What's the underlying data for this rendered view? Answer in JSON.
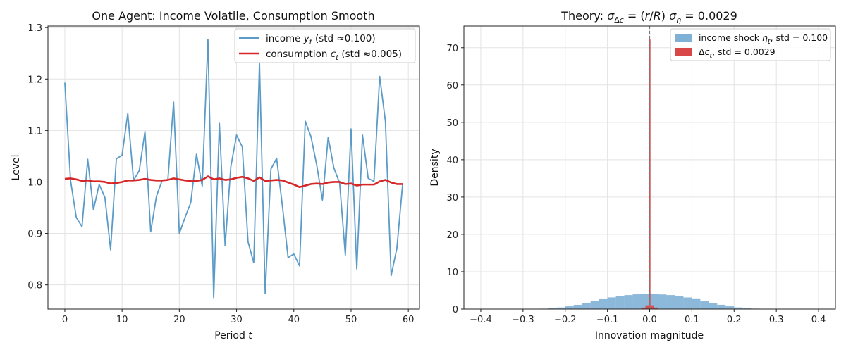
{
  "chart_data": [
    {
      "type": "line",
      "title": "One Agent: Income Volatile, Consumption Smooth",
      "xlabel": "Period t",
      "ylabel": "Level",
      "xlim": [
        -2.95,
        61.95
      ],
      "ylim": [
        0.753,
        1.303
      ],
      "xticks": [
        0,
        10,
        20,
        30,
        40,
        50,
        60
      ],
      "yticks": [
        0.8,
        0.9,
        1.0,
        1.1,
        1.2,
        1.3
      ],
      "ytick_labels": [
        "0.8",
        "0.9",
        "1.0",
        "1.1",
        "1.2",
        "1.3"
      ],
      "grid": true,
      "legend_position": "top-right",
      "reference_line": {
        "y": 1.0,
        "style": "dotted",
        "color": "#777777"
      },
      "x": [
        0,
        1,
        2,
        3,
        4,
        5,
        6,
        7,
        8,
        9,
        10,
        11,
        12,
        13,
        14,
        15,
        16,
        17,
        18,
        19,
        20,
        21,
        22,
        23,
        24,
        25,
        26,
        27,
        28,
        29,
        30,
        31,
        32,
        33,
        34,
        35,
        36,
        37,
        38,
        39,
        40,
        41,
        42,
        43,
        44,
        45,
        46,
        47,
        48,
        49,
        50,
        51,
        52,
        53,
        54,
        55,
        56,
        57,
        58,
        59
      ],
      "series": [
        {
          "name": "income y_t (std ≈ 0.100)",
          "color": "#5b9bc8",
          "values": [
            1.193,
            1.003,
            0.931,
            0.913,
            1.044,
            0.946,
            0.995,
            0.97,
            0.868,
            1.045,
            1.052,
            1.133,
            1.003,
            1.022,
            1.098,
            0.903,
            0.972,
            1.003,
            1.004,
            1.155,
            0.9,
            0.931,
            0.96,
            1.054,
            0.992,
            1.277,
            0.774,
            1.114,
            0.876,
            1.03,
            1.091,
            1.068,
            0.884,
            0.843,
            1.232,
            0.783,
            1.025,
            1.046,
            0.954,
            0.853,
            0.86,
            0.837,
            1.118,
            1.088,
            1.033,
            0.965,
            1.087,
            1.027,
            0.998,
            0.858,
            1.103,
            0.831,
            1.091,
            1.007,
            1.001,
            1.205,
            1.118,
            0.818,
            0.871,
            0.995
          ]
        },
        {
          "name": "consumption c_t (std ≈ 0.005)",
          "color": "#d62728",
          "values": [
            1.006,
            1.007,
            1.005,
            1.002,
            1.003,
            1.001,
            1.001,
            1.0,
            0.997,
            0.998,
            1.0,
            1.003,
            1.003,
            1.004,
            1.006,
            1.004,
            1.003,
            1.003,
            1.004,
            1.007,
            1.005,
            1.003,
            1.002,
            1.002,
            1.004,
            1.011,
            1.005,
            1.007,
            1.004,
            1.005,
            1.008,
            1.01,
            1.007,
            1.002,
            1.009,
            1.002,
            1.003,
            1.004,
            1.003,
            0.999,
            0.995,
            0.99,
            0.993,
            0.996,
            0.997,
            0.996,
            0.999,
            1.0,
            1.0,
            0.996,
            0.997,
            0.993,
            0.995,
            0.995,
            0.995,
            1.001,
            1.004,
            0.999,
            0.996,
            0.996
          ]
        }
      ],
      "legend_labels": {
        "income_prefix": "income ",
        "income_var": "y",
        "income_sub": "t",
        "income_suffix": " (std ≈0.100)",
        "cons_prefix": "consumption ",
        "cons_var": "c",
        "cons_sub": "t",
        "cons_suffix": " (std ≈0.005)"
      }
    },
    {
      "type": "bar",
      "subtype": "histogram",
      "title_prefix": "Theory: ",
      "title_math": "σΔc = (r/R) ση = 0.0029",
      "xlabel": "Innovation magnitude",
      "ylabel": "Density",
      "xlim": [
        -0.44,
        0.44
      ],
      "ylim": [
        0,
        75.8
      ],
      "xticks": [
        -0.4,
        -0.3,
        -0.2,
        -0.1,
        0.0,
        0.1,
        0.2,
        0.3,
        0.4
      ],
      "xtick_labels": [
        "−0.4",
        "−0.3",
        "−0.2",
        "−0.1",
        "0.0",
        "0.1",
        "0.2",
        "0.3",
        "0.4"
      ],
      "yticks": [
        0,
        10,
        20,
        30,
        40,
        50,
        60,
        70
      ],
      "grid": true,
      "legend_position": "top-right",
      "reference_line": {
        "x": 0.0,
        "style": "dashed",
        "color": "#777777"
      },
      "series": [
        {
          "name": "income shock η_t, std = 0.100",
          "color": "#7fb0d6",
          "bin_edges": [
            -0.4,
            -0.38,
            -0.36,
            -0.34,
            -0.32,
            -0.3,
            -0.28,
            -0.26,
            -0.24,
            -0.22,
            -0.2,
            -0.18,
            -0.16,
            -0.14,
            -0.12,
            -0.1,
            -0.08,
            -0.06,
            -0.04,
            -0.02,
            0.0,
            0.02,
            0.04,
            0.06,
            0.08,
            0.1,
            0.12,
            0.14,
            0.16,
            0.18,
            0.2,
            0.22,
            0.24,
            0.26,
            0.28,
            0.3,
            0.32,
            0.34,
            0.36,
            0.38,
            0.4
          ],
          "values": [
            0.0,
            0.0,
            0.0,
            0.0,
            0.01,
            0.02,
            0.05,
            0.11,
            0.22,
            0.43,
            0.74,
            1.14,
            1.61,
            2.1,
            2.65,
            3.13,
            3.48,
            3.75,
            3.95,
            4.02,
            4.02,
            3.92,
            3.75,
            3.46,
            3.11,
            2.68,
            2.12,
            1.63,
            1.15,
            0.74,
            0.44,
            0.24,
            0.12,
            0.05,
            0.02,
            0.01,
            0.0,
            0.0,
            0.0,
            0.0
          ]
        },
        {
          "name": "Δc_t, std = 0.0029",
          "color": "#d94848",
          "bin_edges": [
            -0.02,
            -0.01,
            -0.002,
            0.002,
            0.01,
            0.02
          ],
          "values": [
            0.4,
            1.0,
            72.2,
            1.0,
            0.4
          ]
        }
      ],
      "legend_labels": {
        "income_prefix": "income shock ",
        "income_var": "η",
        "income_sub": "t",
        "income_suffix": ", std = 0.100",
        "cons_delta": "Δ",
        "cons_var": "c",
        "cons_sub": "t",
        "cons_suffix": ", std = 0.0029"
      }
    }
  ]
}
